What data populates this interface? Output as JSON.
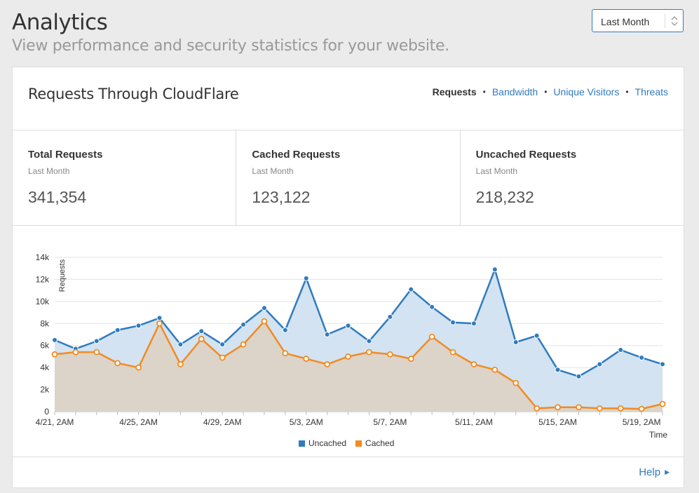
{
  "header": {
    "title": "Analytics",
    "subtitle": "View performance and security statistics for your website."
  },
  "range_select": {
    "value": "Last Month"
  },
  "card": {
    "title": "Requests Through CloudFlare",
    "nav": [
      {
        "label": "Requests",
        "active": true
      },
      {
        "label": "Bandwidth",
        "active": false
      },
      {
        "label": "Unique Visitors",
        "active": false
      },
      {
        "label": "Threats",
        "active": false
      }
    ],
    "nav_separator": "•",
    "stats": [
      {
        "label": "Total Requests",
        "period": "Last Month",
        "value": "341,354"
      },
      {
        "label": "Cached Requests",
        "period": "Last Month",
        "value": "123,122"
      },
      {
        "label": "Uncached Requests",
        "period": "Last Month",
        "value": "218,232"
      }
    ],
    "help": "Help"
  },
  "colors": {
    "uncached": "#2f7bbf",
    "cached": "#f28b20",
    "uncached_fill": "#d3e3f1",
    "cached_fill": "#dcd3c9",
    "link": "#2f7bbf"
  },
  "chart_data": {
    "type": "area",
    "ylabel": "Requests",
    "xlabel": "Time",
    "ylim": [
      0,
      14000
    ],
    "y_ticks": [
      "0",
      "2k",
      "4k",
      "6k",
      "8k",
      "10k",
      "12k",
      "14k"
    ],
    "x_ticks": [
      "4/21, 2AM",
      "4/25, 2AM",
      "4/29, 2AM",
      "5/3, 2AM",
      "5/7, 2AM",
      "5/11, 2AM",
      "5/15, 2AM",
      "5/19, 2AM"
    ],
    "legend_position": "bottom-center",
    "grid": true,
    "series": [
      {
        "name": "Uncached",
        "values": [
          6500,
          5700,
          6400,
          7400,
          7800,
          8500,
          6100,
          7300,
          6100,
          7900,
          9400,
          7400,
          12100,
          7000,
          7800,
          6400,
          8600,
          11100,
          9500,
          8100,
          8000,
          12900,
          6300,
          6900,
          3800,
          3200,
          4300,
          5600,
          4900,
          4300
        ]
      },
      {
        "name": "Cached",
        "values": [
          5200,
          5400,
          5400,
          4400,
          4000,
          8000,
          4300,
          6600,
          4900,
          6100,
          8200,
          5300,
          4800,
          4300,
          5000,
          5400,
          5200,
          4800,
          6800,
          5400,
          4300,
          3800,
          2600,
          300,
          400,
          400,
          300,
          300,
          250,
          700
        ]
      }
    ]
  }
}
